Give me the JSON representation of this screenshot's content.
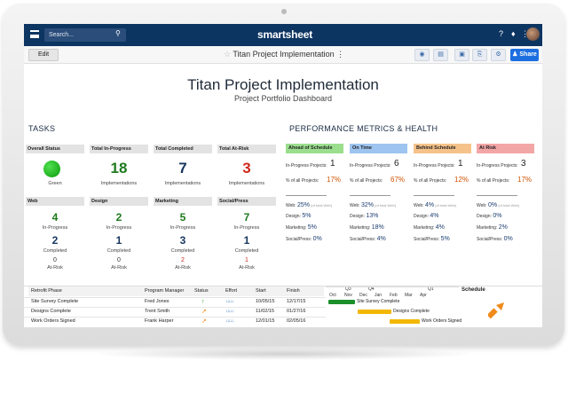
{
  "topbar": {
    "search_placeholder": "Search...",
    "brand": "smartsheet",
    "icons": [
      "menu-icon",
      "search-icon",
      "help-icon",
      "bell-icon",
      "apps-icon",
      "avatar"
    ]
  },
  "toolbar": {
    "edit_label": "Edit",
    "sheet_title": "Titan Project Implementation",
    "share_label": "Share"
  },
  "header": {
    "title": "Titan Project Implementation",
    "subtitle": "Project Portfolio Dashboard"
  },
  "tasks": {
    "heading": "TASKS",
    "summary": [
      {
        "label": "Overall Status",
        "value": "",
        "caption": "Green",
        "color": "#1a9a1a"
      },
      {
        "label": "Total In-Progress",
        "value": "18",
        "caption": "Implementations",
        "color": "#1d7a1d"
      },
      {
        "label": "Total Completed",
        "value": "7",
        "caption": "Implementations",
        "color": "#17365d"
      },
      {
        "label": "Total At-Risk",
        "value": "3",
        "caption": "Implementations",
        "color": "#d0281c"
      }
    ],
    "categories": [
      {
        "label": "Web",
        "in_progress": "4",
        "completed": "2",
        "at_risk": "0"
      },
      {
        "label": "Design",
        "in_progress": "2",
        "completed": "1",
        "at_risk": "0"
      },
      {
        "label": "Marketing",
        "in_progress": "5",
        "completed": "3",
        "at_risk": "2"
      },
      {
        "label": "Social/Press",
        "in_progress": "7",
        "completed": "1",
        "at_risk": "1"
      }
    ],
    "in_progress_caption": "In-Progress",
    "completed_caption": "Completed",
    "at_risk_caption": "At-Risk"
  },
  "metrics": {
    "heading": "PERFORMANCE METRICS & HEALTH",
    "inprog_label": "In-Progress Projects:",
    "pct_label": "% of all Projects:",
    "web_label": "Web:",
    "web_note": "(of total Web)",
    "design_label": "Design:",
    "marketing_label": "Marketing:",
    "social_label": "Social/Press:",
    "columns": [
      {
        "label": "Ahead of Schedule",
        "color": "#9bde8e",
        "projects": "1",
        "pct": "17%",
        "web": "25%",
        "design": "5%",
        "marketing": "5%",
        "social": "0%"
      },
      {
        "label": "On Time",
        "color": "#9ec4f0",
        "projects": "6",
        "pct": "67%",
        "web": "32%",
        "design": "13%",
        "marketing": "18%",
        "social": "4%"
      },
      {
        "label": "Behind Schedule",
        "color": "#f5c38a",
        "projects": "1",
        "pct": "12%",
        "web": "4%",
        "design": "4%",
        "marketing": "4%",
        "social": "5%"
      },
      {
        "label": "At Risk",
        "color": "#f3a6a6",
        "projects": "3",
        "pct": "17%",
        "web": "0%",
        "design": "0%",
        "marketing": "2%",
        "social": "0%"
      }
    ]
  },
  "table": {
    "headers": [
      "Retrofit Phase",
      "Program Manager",
      "Status",
      "Effort",
      "Start",
      "Finish"
    ],
    "rows": [
      {
        "phase": "Site Survey Complete",
        "manager": "Fred Jones",
        "status_icon": "up-arrow-icon",
        "effort": "↓↓↓↓↓",
        "start": "10/05/15",
        "finish": "12/17/15"
      },
      {
        "phase": "Designs Complete",
        "manager": "Trent Smith",
        "status_icon": "side-arrow-icon",
        "effort": "↓↓↓↓↓",
        "start": "11/02/15",
        "finish": "01/27/16"
      },
      {
        "phase": "Work Orders Signed",
        "manager": "Frank Harper",
        "status_icon": "side-arrow-icon",
        "effort": "↓↓↓↓↓",
        "start": "12/01/15",
        "finish": "02/05/16"
      }
    ],
    "gantt_quarters": [
      "Q3",
      "Q4",
      "Q1"
    ],
    "gantt_months": [
      "Oct",
      "Nov",
      "Dec",
      "Jan",
      "Feb",
      "Mar",
      "Apr"
    ],
    "gantt_bars": [
      {
        "label": "Site Survey Complete",
        "color": "#1a8f2a"
      },
      {
        "label": "Designs Complete",
        "color": "#f2b705"
      },
      {
        "label": "Work Orders Signed",
        "color": "#f2b705"
      }
    ],
    "schedule_label": "Schedule"
  }
}
